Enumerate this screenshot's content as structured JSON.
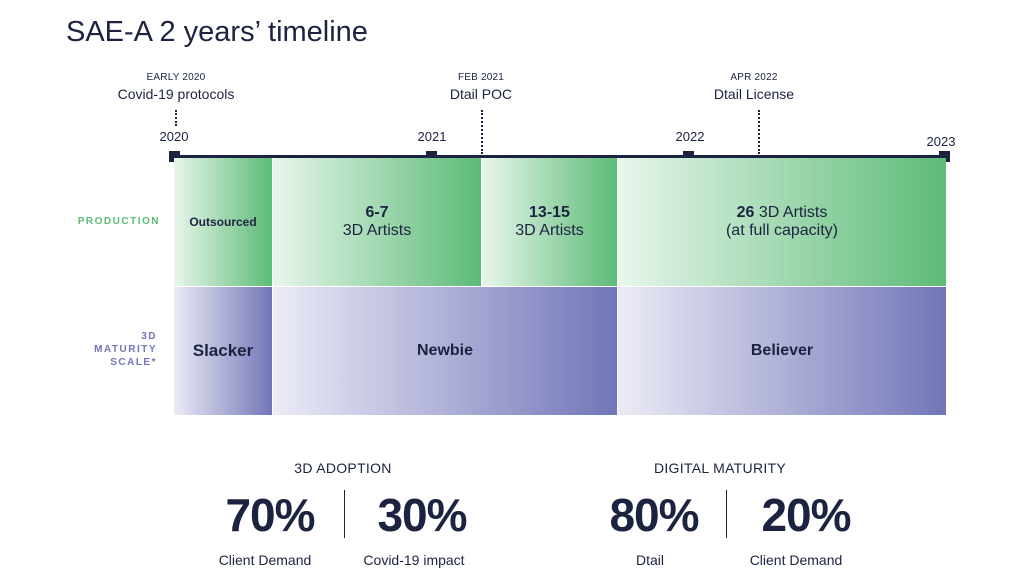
{
  "title": "SAE-A 2 years’ timeline",
  "events": [
    {
      "date": "EARLY 2020",
      "label": "Covid-19 protocols"
    },
    {
      "date": "FEB 2021",
      "label": "Dtail POC"
    },
    {
      "date": "APR 2022",
      "label": "Dtail License"
    }
  ],
  "years": [
    "2020",
    "2021",
    "2022",
    "2023"
  ],
  "rows": {
    "production": {
      "label": "PRODUCTION",
      "color": "#5cbb77",
      "segments": [
        {
          "bold": "Outsourced",
          "text": ""
        },
        {
          "bold": "6-7",
          "text": "3D Artists"
        },
        {
          "bold": "13-15",
          "text": "3D Artists"
        },
        {
          "bold": "26",
          "text": " 3D Artists",
          "text2": "(at full capacity)"
        }
      ]
    },
    "maturity": {
      "label_lines": [
        "3D",
        "MATURITY",
        "SCALE*"
      ],
      "color": "#7276b8",
      "segments": [
        "Slacker",
        "Newbie",
        "Believer"
      ]
    }
  },
  "stats": [
    {
      "heading": "3D ADOPTION",
      "items": [
        {
          "value": "70%",
          "caption": "Client Demand"
        },
        {
          "value": "30%",
          "caption": "Covid-19 impact"
        }
      ]
    },
    {
      "heading": "DIGITAL MATURITY",
      "items": [
        {
          "value": "80%",
          "caption": "Dtail"
        },
        {
          "value": "20%",
          "caption": "Client Demand"
        }
      ]
    }
  ]
}
